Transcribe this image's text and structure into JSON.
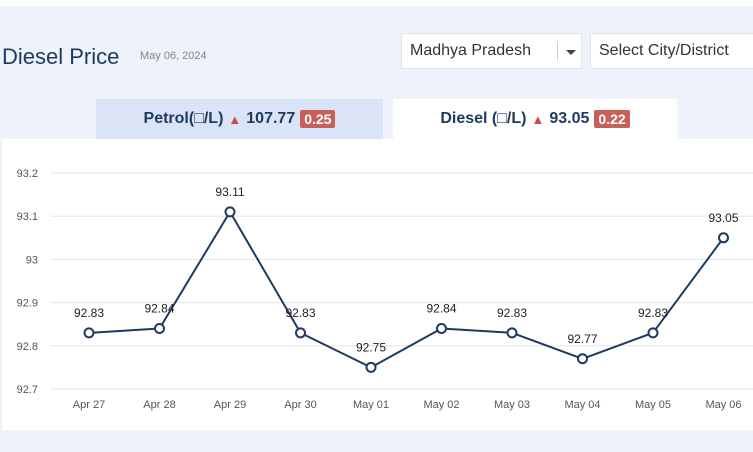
{
  "header": {
    "title": "Diesel Price",
    "date": "May 06, 2024"
  },
  "filters": {
    "state": "Madhya Pradesh",
    "city_placeholder": "Select City/District"
  },
  "tabs": [
    {
      "label": "Petrol(□/L)",
      "price": "107.77",
      "change": "0.25",
      "direction": "up",
      "active": false
    },
    {
      "label": "Diesel (□/L)",
      "price": "93.05",
      "change": "0.22",
      "direction": "up",
      "active": true
    }
  ],
  "colors": {
    "line": "#1e3a5f",
    "up": "#c94c4c",
    "badge": "#c7605a"
  },
  "chart_data": {
    "type": "line",
    "categories": [
      "Apr 27",
      "Apr 28",
      "Apr 29",
      "Apr 30",
      "May 01",
      "May 02",
      "May 03",
      "May 04",
      "May 05",
      "May 06"
    ],
    "values": [
      92.83,
      92.84,
      93.11,
      92.83,
      92.75,
      92.84,
      92.83,
      92.77,
      92.83,
      93.05
    ],
    "data_labels": [
      "92.83",
      "92.84",
      "93.11",
      "92.83",
      "92.75",
      "92.84",
      "92.83",
      "92.77",
      "92.83",
      "93.05"
    ],
    "yticks": [
      "92.7",
      "92.8",
      "92.9",
      "93",
      "93.1",
      "93.2"
    ],
    "ylim": [
      92.7,
      93.2
    ],
    "grid": true
  }
}
